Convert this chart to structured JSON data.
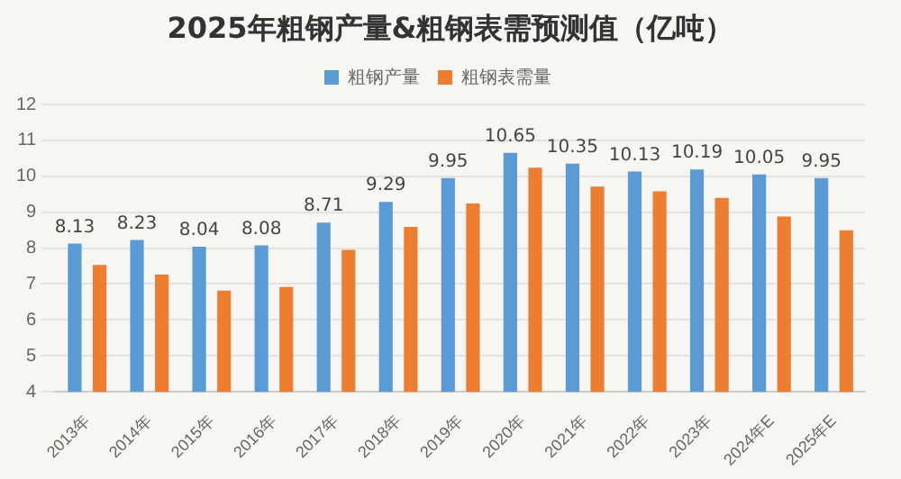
{
  "chart_data": {
    "type": "bar",
    "title": "2025年粗钢产量&粗钢表需预测值（亿吨）",
    "categories": [
      "2013年",
      "2014年",
      "2015年",
      "2016年",
      "2017年",
      "2018年",
      "2019年",
      "2020年",
      "2021年",
      "2022年",
      "2023年",
      "2024年E",
      "2025年E"
    ],
    "series": [
      {
        "name": "粗钢产量",
        "color": "#5b9bd5",
        "values": [
          8.13,
          8.23,
          8.04,
          8.08,
          8.71,
          9.29,
          9.95,
          10.65,
          10.35,
          10.13,
          10.19,
          10.05,
          9.95
        ],
        "value_labels": [
          "8.13",
          "8.23",
          "8.04",
          "8.08",
          "8.71",
          "9.29",
          "9.95",
          "10.65",
          "10.35",
          "10.13",
          "10.19",
          "10.05",
          "9.95"
        ]
      },
      {
        "name": "粗钢表需量",
        "color": "#ed7d31",
        "values": [
          7.53,
          7.26,
          6.82,
          6.92,
          7.95,
          8.59,
          9.24,
          10.24,
          9.71,
          9.58,
          9.4,
          8.88,
          8.5
        ]
      }
    ],
    "ylim": [
      4,
      12
    ],
    "yticks": [
      4,
      5,
      6,
      7,
      8,
      9,
      10,
      11,
      12
    ],
    "grid": "y",
    "legend": "top"
  }
}
